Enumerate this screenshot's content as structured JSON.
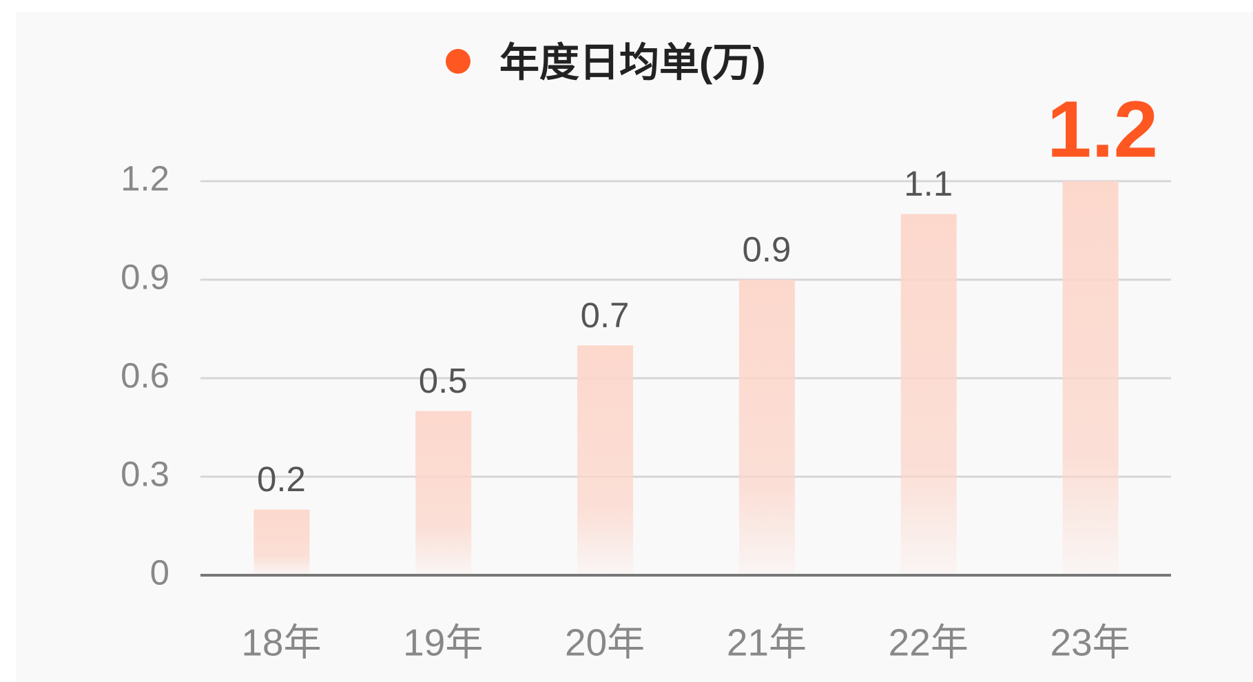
{
  "chart_data": {
    "type": "bar",
    "categories": [
      "18年",
      "19年",
      "20年",
      "21年",
      "22年",
      "23年"
    ],
    "series": [
      {
        "name": "年度日均单(万)",
        "color": "#ff5722",
        "bar_color": "#fcd6ca",
        "values": [
          0.2,
          0.5,
          0.7,
          0.9,
          1.1,
          1.2
        ]
      }
    ],
    "ylim": [
      0,
      1.2
    ],
    "yticks": [
      0,
      0.3,
      0.6,
      0.9,
      1.2
    ],
    "grid": true,
    "legend": "top"
  }
}
